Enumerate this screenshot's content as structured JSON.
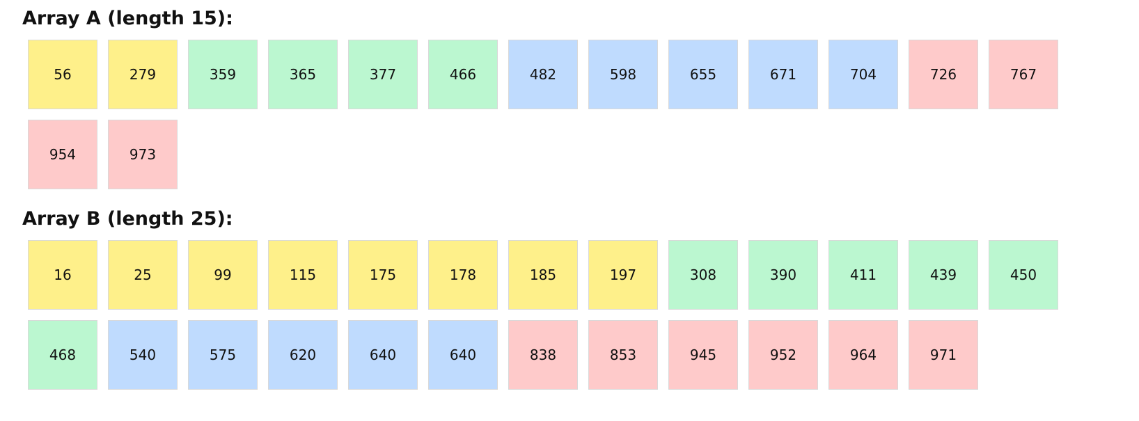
{
  "colors": {
    "yellow": "#fef08a",
    "green": "#bbf7d0",
    "blue": "#bfdbfe",
    "red": "#fecaca"
  },
  "array_a": {
    "title": "Array A (length 15):",
    "cells": [
      {
        "value": "56",
        "color": "yellow"
      },
      {
        "value": "279",
        "color": "yellow"
      },
      {
        "value": "359",
        "color": "green"
      },
      {
        "value": "365",
        "color": "green"
      },
      {
        "value": "377",
        "color": "green"
      },
      {
        "value": "466",
        "color": "green"
      },
      {
        "value": "482",
        "color": "blue"
      },
      {
        "value": "598",
        "color": "blue"
      },
      {
        "value": "655",
        "color": "blue"
      },
      {
        "value": "671",
        "color": "blue"
      },
      {
        "value": "704",
        "color": "blue"
      },
      {
        "value": "726",
        "color": "red"
      },
      {
        "value": "767",
        "color": "red"
      },
      {
        "value": "954",
        "color": "red"
      },
      {
        "value": "973",
        "color": "red"
      }
    ]
  },
  "array_b": {
    "title": "Array B (length 25):",
    "cells": [
      {
        "value": "16",
        "color": "yellow"
      },
      {
        "value": "25",
        "color": "yellow"
      },
      {
        "value": "99",
        "color": "yellow"
      },
      {
        "value": "115",
        "color": "yellow"
      },
      {
        "value": "175",
        "color": "yellow"
      },
      {
        "value": "178",
        "color": "yellow"
      },
      {
        "value": "185",
        "color": "yellow"
      },
      {
        "value": "197",
        "color": "yellow"
      },
      {
        "value": "308",
        "color": "green"
      },
      {
        "value": "390",
        "color": "green"
      },
      {
        "value": "411",
        "color": "green"
      },
      {
        "value": "439",
        "color": "green"
      },
      {
        "value": "450",
        "color": "green"
      },
      {
        "value": "468",
        "color": "green"
      },
      {
        "value": "540",
        "color": "blue"
      },
      {
        "value": "575",
        "color": "blue"
      },
      {
        "value": "620",
        "color": "blue"
      },
      {
        "value": "640",
        "color": "blue"
      },
      {
        "value": "640",
        "color": "blue"
      },
      {
        "value": "838",
        "color": "red"
      },
      {
        "value": "853",
        "color": "red"
      },
      {
        "value": "945",
        "color": "red"
      },
      {
        "value": "952",
        "color": "red"
      },
      {
        "value": "964",
        "color": "red"
      },
      {
        "value": "971",
        "color": "red"
      }
    ]
  }
}
